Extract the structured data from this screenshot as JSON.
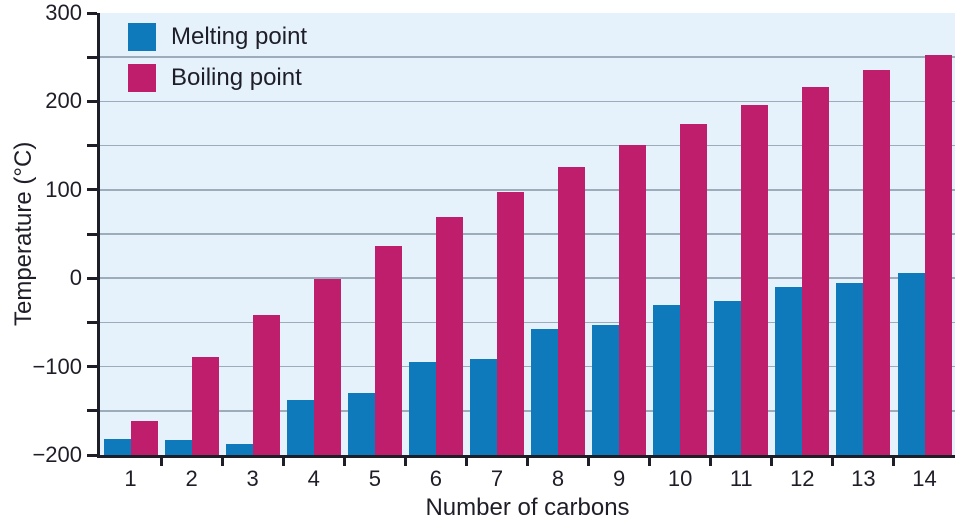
{
  "chart_data": {
    "type": "bar",
    "title": "",
    "xlabel": "Number of carbons",
    "ylabel": "Temperature (°C)",
    "categories": [
      "1",
      "2",
      "3",
      "4",
      "5",
      "6",
      "7",
      "8",
      "9",
      "10",
      "11",
      "12",
      "13",
      "14"
    ],
    "series": [
      {
        "name": "Melting point",
        "color": "#0E79BB",
        "values": [
          -182,
          -183,
          -188,
          -138,
          -130,
          -95,
          -91,
          -57,
          -53,
          -30,
          -26,
          -10,
          -5,
          6
        ]
      },
      {
        "name": "Boiling point",
        "color": "#BE1E6C",
        "values": [
          -162,
          -89,
          -42,
          -1,
          36,
          69,
          98,
          126,
          151,
          174,
          196,
          216,
          235,
          253
        ]
      }
    ],
    "ylim": [
      -200,
      300
    ],
    "bars_baseline": -200,
    "yticks_major": [
      300,
      200,
      100,
      0,
      -100,
      -200
    ],
    "ytick_labels": [
      "300",
      "200",
      "100",
      "0",
      "−100",
      "−200"
    ],
    "yticks_minor_step": 50,
    "grid": true,
    "grid_values": [
      250,
      200,
      150,
      100,
      50,
      0,
      -50,
      -100,
      -150
    ],
    "legend_position": "top-left",
    "colors": {
      "plot_background": "#E5F1FB",
      "gridline": "#9CACBA",
      "axis": "#1E1E28",
      "text": "#1E1E28",
      "page_background": "#FFFFFF"
    }
  }
}
